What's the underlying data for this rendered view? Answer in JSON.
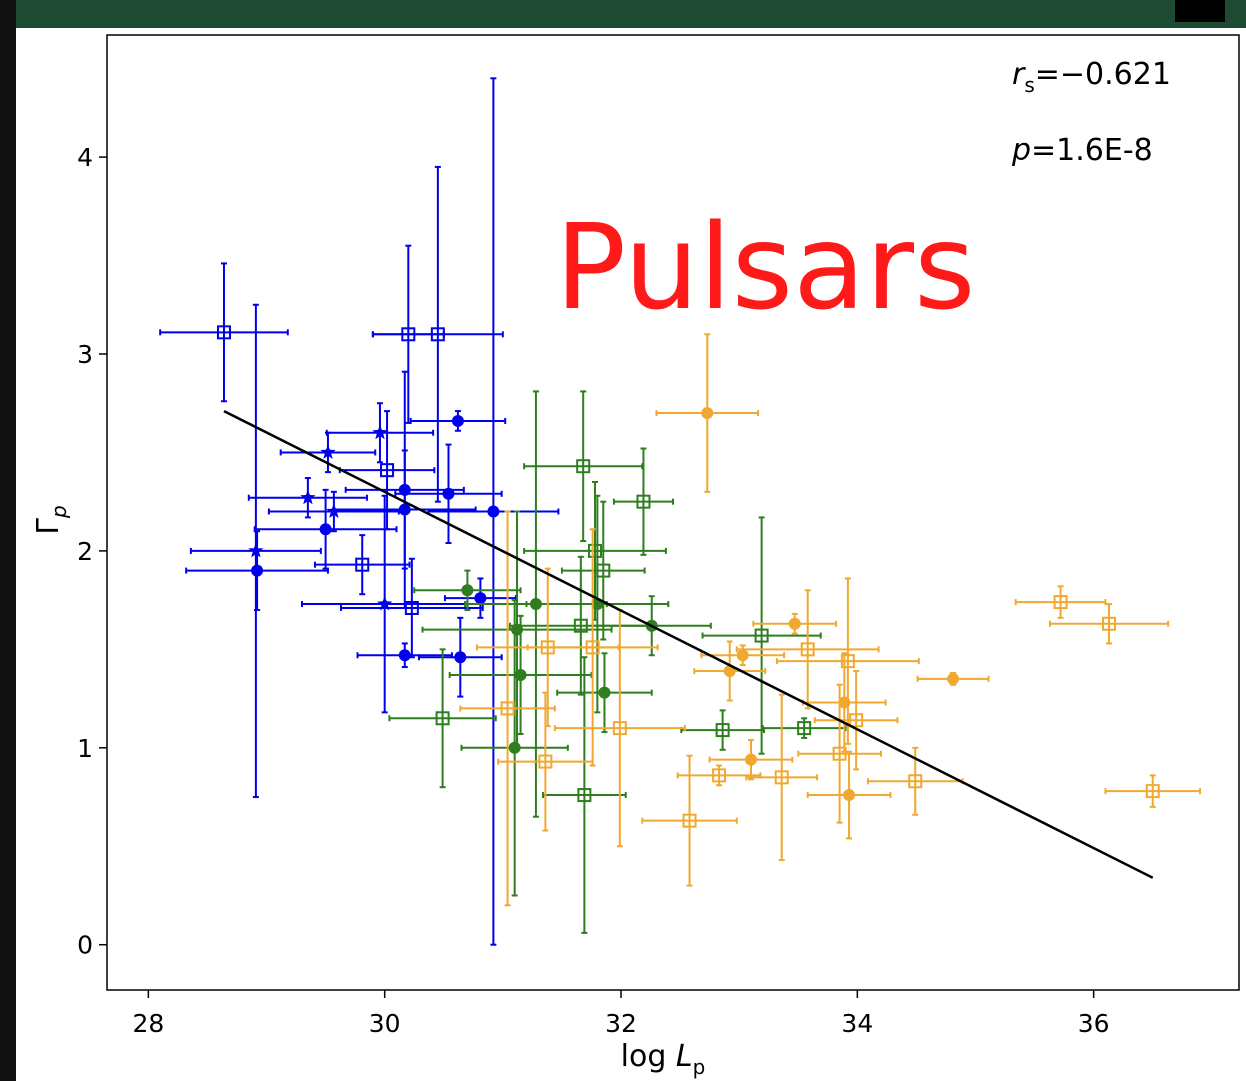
{
  "chart_data": {
    "type": "scatter",
    "xlim": [
      27.65,
      37.23
    ],
    "ylim": [
      -0.23,
      4.62
    ],
    "xticks": [
      28,
      30,
      32,
      34,
      36
    ],
    "yticks": [
      0,
      1,
      2,
      3,
      4
    ],
    "x_label": {
      "text": "log ",
      "symbol": "L",
      "subscript": "p"
    },
    "y_label": {
      "symbol": "Γ",
      "subscript": "p"
    },
    "annotations": [
      {
        "symbol": "r",
        "subscript": "s",
        "text": "=−0.621"
      },
      {
        "symbol": "p",
        "text": "=1.6E-8"
      }
    ],
    "headline": "Pulsars",
    "fit": {
      "color": "#000000",
      "x": [
        28.64,
        36.5
      ],
      "values": [
        2.71,
        0.34
      ]
    },
    "series": [
      {
        "color": "#0000ee",
        "marker": "square",
        "x": [
          28.64,
          30.2,
          30.45,
          30.02,
          29.81,
          30.23
        ],
        "values": [
          3.11,
          3.1,
          3.1,
          2.41,
          1.93,
          1.71
        ],
        "xerr": [
          0.54,
          0.3,
          0.55,
          0.4,
          0.4,
          0.6
        ],
        "yerr": [
          0.35,
          0.45,
          0.85,
          0.3,
          0.15,
          0.25
        ]
      },
      {
        "color": "#0000ee",
        "marker": "circle",
        "x": [
          30.62,
          28.92,
          29.5,
          30.17,
          30.17,
          30.54,
          30.92,
          30.81,
          30.17,
          30.64
        ],
        "values": [
          2.66,
          1.9,
          2.11,
          2.21,
          2.31,
          2.29,
          2.2,
          1.76,
          1.47,
          1.46
        ],
        "xerr": [
          0.4,
          0.6,
          0.6,
          0.6,
          0.5,
          0.45,
          0.55,
          0.3,
          0.4,
          0.35
        ],
        "yerr": [
          0.05,
          0.2,
          0.2,
          0.3,
          0.6,
          0.25,
          2.2,
          0.1,
          0.06,
          0.2
        ]
      },
      {
        "color": "#0000ee",
        "marker": "star",
        "x": [
          28.91,
          29.35,
          29.52,
          29.57,
          29.96,
          30.0
        ],
        "values": [
          2.0,
          2.27,
          2.5,
          2.2,
          2.6,
          1.73
        ],
        "xerr": [
          0.55,
          0.5,
          0.4,
          0.55,
          0.45,
          0.7
        ],
        "yerr": [
          1.25,
          0.1,
          0.1,
          0.1,
          0.15,
          0.55
        ]
      },
      {
        "color": "#2e7d1e",
        "marker": "circle",
        "x": [
          30.7,
          31.28,
          31.12,
          31.15,
          31.1,
          31.8,
          31.86,
          32.26
        ],
        "values": [
          1.8,
          1.73,
          1.6,
          1.37,
          1.0,
          1.73,
          1.28,
          1.62
        ],
        "xerr": [
          0.45,
          0.6,
          0.8,
          0.6,
          0.45,
          0.6,
          0.4,
          0.5
        ],
        "yerr": [
          0.1,
          1.08,
          0.6,
          0.3,
          0.75,
          0.55,
          0.2,
          0.15
        ]
      },
      {
        "color": "#2e7d1e",
        "marker": "square",
        "x": [
          31.68,
          32.19,
          31.78,
          31.85,
          31.66,
          30.49,
          31.69,
          32.86,
          33.19,
          33.55
        ],
        "values": [
          2.43,
          2.25,
          2.0,
          1.9,
          1.62,
          1.15,
          0.76,
          1.09,
          1.57,
          1.1
        ],
        "xerr": [
          0.5,
          0.25,
          0.6,
          0.35,
          0.6,
          0.45,
          0.35,
          0.35,
          0.5,
          0.35
        ],
        "yerr": [
          0.38,
          0.27,
          0.35,
          0.35,
          0.35,
          0.35,
          0.7,
          0.1,
          0.6,
          0.05
        ]
      },
      {
        "color": "#f0a830",
        "marker": "circle",
        "x": [
          32.73,
          33.03,
          32.92,
          33.47,
          33.1,
          33.89,
          33.93,
          34.81
        ],
        "values": [
          2.7,
          1.47,
          1.39,
          1.63,
          0.94,
          1.23,
          0.76,
          1.35
        ],
        "xerr": [
          0.43,
          0.35,
          0.3,
          0.35,
          0.35,
          0.35,
          0.35,
          0.3
        ],
        "yerr": [
          0.4,
          0.05,
          0.15,
          0.05,
          0.1,
          0.25,
          0.22,
          0.03
        ]
      },
      {
        "color": "#f0a830",
        "marker": "square",
        "x": [
          31.04,
          31.38,
          31.36,
          31.99,
          31.76,
          32.58,
          32.83,
          33.36,
          33.58,
          33.92,
          33.99,
          33.85,
          34.49,
          35.72,
          36.13,
          36.5
        ],
        "values": [
          1.2,
          1.51,
          0.93,
          1.1,
          1.51,
          0.63,
          0.86,
          0.85,
          1.5,
          1.44,
          1.14,
          0.97,
          0.83,
          1.74,
          1.63,
          0.78
        ],
        "xerr": [
          0.4,
          0.6,
          0.4,
          0.55,
          0.55,
          0.4,
          0.35,
          0.3,
          0.6,
          0.6,
          0.35,
          0.35,
          0.4,
          0.38,
          0.5,
          0.4
        ],
        "yerr": [
          1.0,
          0.4,
          0.35,
          0.6,
          0.6,
          0.33,
          0.05,
          0.42,
          0.3,
          0.42,
          0.25,
          0.35,
          0.17,
          0.08,
          0.1,
          0.08
        ]
      }
    ]
  }
}
